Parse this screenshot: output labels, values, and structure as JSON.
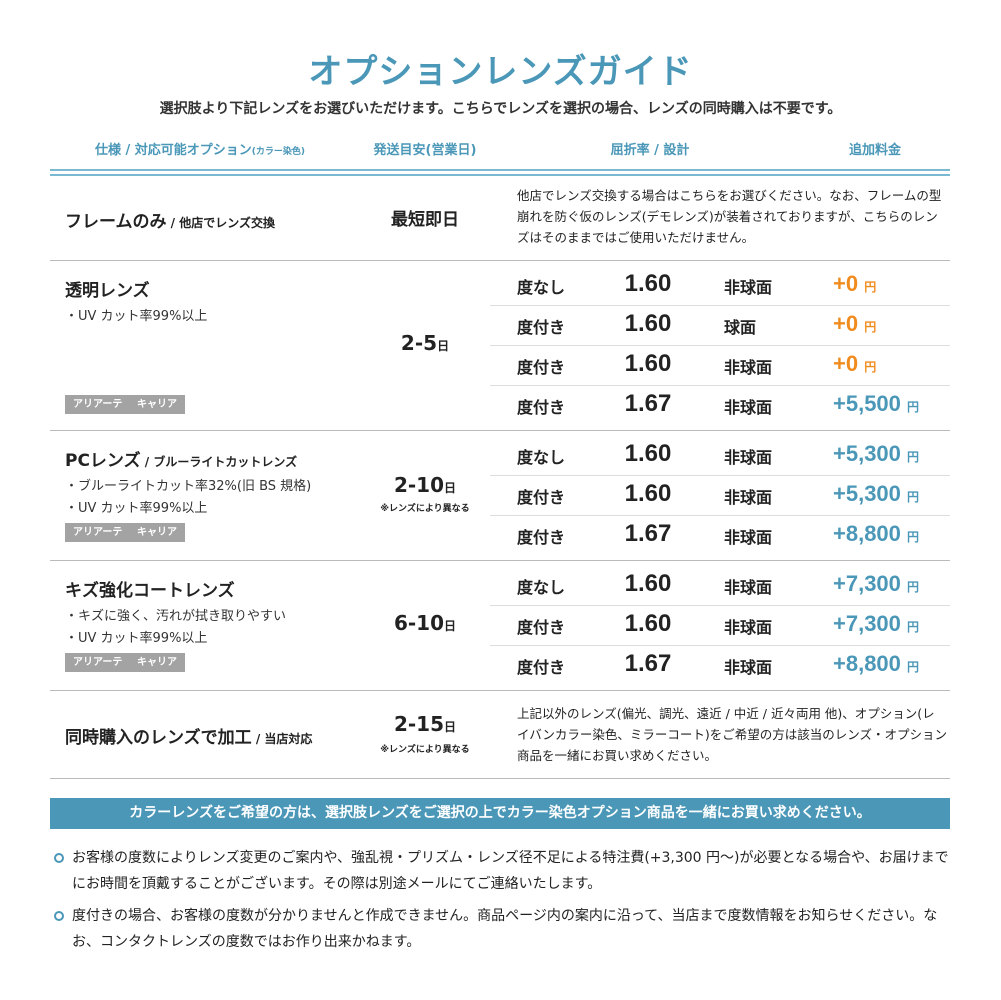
{
  "title": "オプションレンズガイド",
  "subtitle": "選択肢より下記レンズをお選びいただけます。こちらでレンズを選択の場合、レンズの同時購入は不要です。",
  "headers": {
    "spec": "仕様 / 対応可能オプション",
    "spec_small": "(カラー染色)",
    "days": "発送目安(営業日)",
    "index": "屈折率 / 設計",
    "price": "追加料金"
  },
  "colors": {
    "accent": "#4a97b8",
    "orange": "#f08c1e"
  },
  "frame_only": {
    "name": "フレームのみ",
    "name_sub": " / 他店でレンズ交換",
    "days": "最短即日",
    "desc": "他店でレンズ交換する場合はこちらをお選びください。なお、フレームの型崩れを防ぐ仮のレンズ(デモレンズ)が装着されておりますが、こちらのレンズはそのままではご使用いただけません。"
  },
  "groups": [
    {
      "name": "透明レンズ",
      "name_sub": "",
      "bullets": [
        "・UV カット率99%以上"
      ],
      "tags": [
        "アリアーテ",
        "キャリア"
      ],
      "days": "2-5",
      "day_unit": "日",
      "note": "",
      "lenses": [
        {
          "type": "度なし",
          "index": "1.60",
          "design": "非球面",
          "price": "+0",
          "unit": "円",
          "color": "orange"
        },
        {
          "type": "度付き",
          "index": "1.60",
          "design": "球面",
          "price": "+0",
          "unit": "円",
          "color": "orange"
        },
        {
          "type": "度付き",
          "index": "1.60",
          "design": "非球面",
          "price": "+0",
          "unit": "円",
          "color": "orange"
        },
        {
          "type": "度付き",
          "index": "1.67",
          "design": "非球面",
          "price": "+5,500",
          "unit": "円",
          "color": "accent"
        }
      ]
    },
    {
      "name": "PCレンズ",
      "name_sub": " / ブルーライトカットレンズ",
      "bullets": [
        "・ブルーライトカット率32%(旧 BS 規格)",
        "・UV カット率99%以上"
      ],
      "tags": [
        "アリアーテ",
        "キャリア"
      ],
      "days": "2-10",
      "day_unit": "日",
      "note": "※レンズにより異なる",
      "lenses": [
        {
          "type": "度なし",
          "index": "1.60",
          "design": "非球面",
          "price": "+5,300",
          "unit": "円",
          "color": "accent"
        },
        {
          "type": "度付き",
          "index": "1.60",
          "design": "非球面",
          "price": "+5,300",
          "unit": "円",
          "color": "accent"
        },
        {
          "type": "度付き",
          "index": "1.67",
          "design": "非球面",
          "price": "+8,800",
          "unit": "円",
          "color": "accent"
        }
      ]
    },
    {
      "name": "キズ強化コートレンズ",
      "name_sub": "",
      "bullets": [
        "・キズに強く、汚れが拭き取りやすい",
        "・UV カット率99%以上"
      ],
      "tags": [
        "アリアーテ",
        "キャリア"
      ],
      "days": "6-10",
      "day_unit": "日",
      "note": "",
      "lenses": [
        {
          "type": "度なし",
          "index": "1.60",
          "design": "非球面",
          "price": "+7,300",
          "unit": "円",
          "color": "accent"
        },
        {
          "type": "度付き",
          "index": "1.60",
          "design": "非球面",
          "price": "+7,300",
          "unit": "円",
          "color": "accent"
        },
        {
          "type": "度付き",
          "index": "1.67",
          "design": "非球面",
          "price": "+8,800",
          "unit": "円",
          "color": "accent"
        }
      ]
    }
  ],
  "processing": {
    "name": "同時購入のレンズで加工",
    "name_sub": " / 当店対応",
    "days": "2-15",
    "day_unit": "日",
    "note": "※レンズにより異なる",
    "desc": "上記以外のレンズ(偏光、調光、遠近 / 中近 / 近々両用 他)、オプション(レイバンカラー染色、ミラーコート)をご希望の方は該当のレンズ・オプション商品を一緒にお買い求めください。"
  },
  "banner": "カラーレンズをご希望の方は、選択肢レンズをご選択の上でカラー染色オプション商品を一緒にお買い求めください。",
  "notes": [
    "お客様の度数によりレンズ変更のご案内や、強乱視・プリズム・レンズ径不足による特注費(+3,300 円〜)が必要となる場合や、お届けまでにお時間を頂戴することがございます。その際は別途メールにてご連絡いたします。",
    "度付きの場合、お客様の度数が分かりませんと作成できません。商品ページ内の案内に沿って、当店まで度数情報をお知らせください。なお、コンタクトレンズの度数ではお作り出来かねます。"
  ]
}
